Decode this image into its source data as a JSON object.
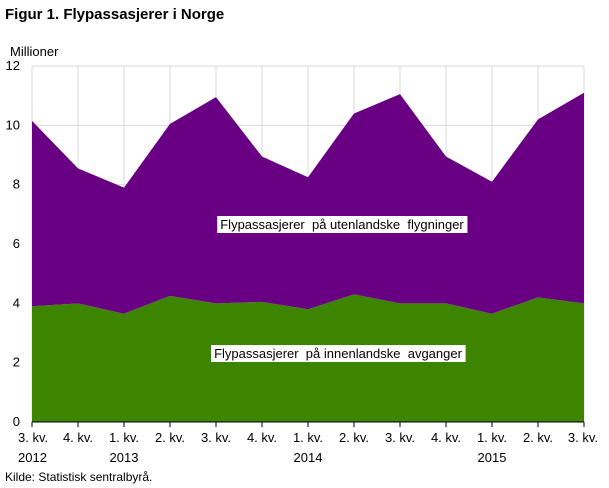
{
  "figure": {
    "title": "Figur 1. Flypassasjerer i Norge",
    "unit_label": "Millioner",
    "source": "Kilde: Statistisk sentralbyrå."
  },
  "chart_data": {
    "type": "area",
    "stacked": true,
    "categories": [
      "3. kv.",
      "4. kv.",
      "1. kv.",
      "2. kv.",
      "3. kv.",
      "4. kv.",
      "1. kv.",
      "2. kv.",
      "3. kv.",
      "4. kv.",
      "1. kv.",
      "2. kv.",
      "3. kv."
    ],
    "year_labels": [
      "2012",
      "",
      "2013",
      "",
      "",
      "",
      "2014",
      "",
      "",
      "",
      "2015",
      "",
      ""
    ],
    "series": [
      {
        "name": "Flypassasjerer  på innenlandske  avganger",
        "color": "#3d8500",
        "values": [
          3.9,
          4.0,
          3.65,
          4.25,
          4.0,
          4.05,
          3.8,
          4.3,
          4.0,
          4.0,
          3.65,
          4.2,
          4.0
        ]
      },
      {
        "name": "Flypassasjerer  på utenlandske  flygninger",
        "color": "#690084",
        "values": [
          6.25,
          4.55,
          4.25,
          5.8,
          6.95,
          4.9,
          4.45,
          6.1,
          7.05,
          4.95,
          4.45,
          6.0,
          7.1
        ]
      }
    ],
    "yticks": [
      0,
      2,
      4,
      6,
      8,
      10,
      12
    ],
    "ylim": [
      0,
      12
    ],
    "grid": true,
    "legend": "labels-inside-areas"
  }
}
